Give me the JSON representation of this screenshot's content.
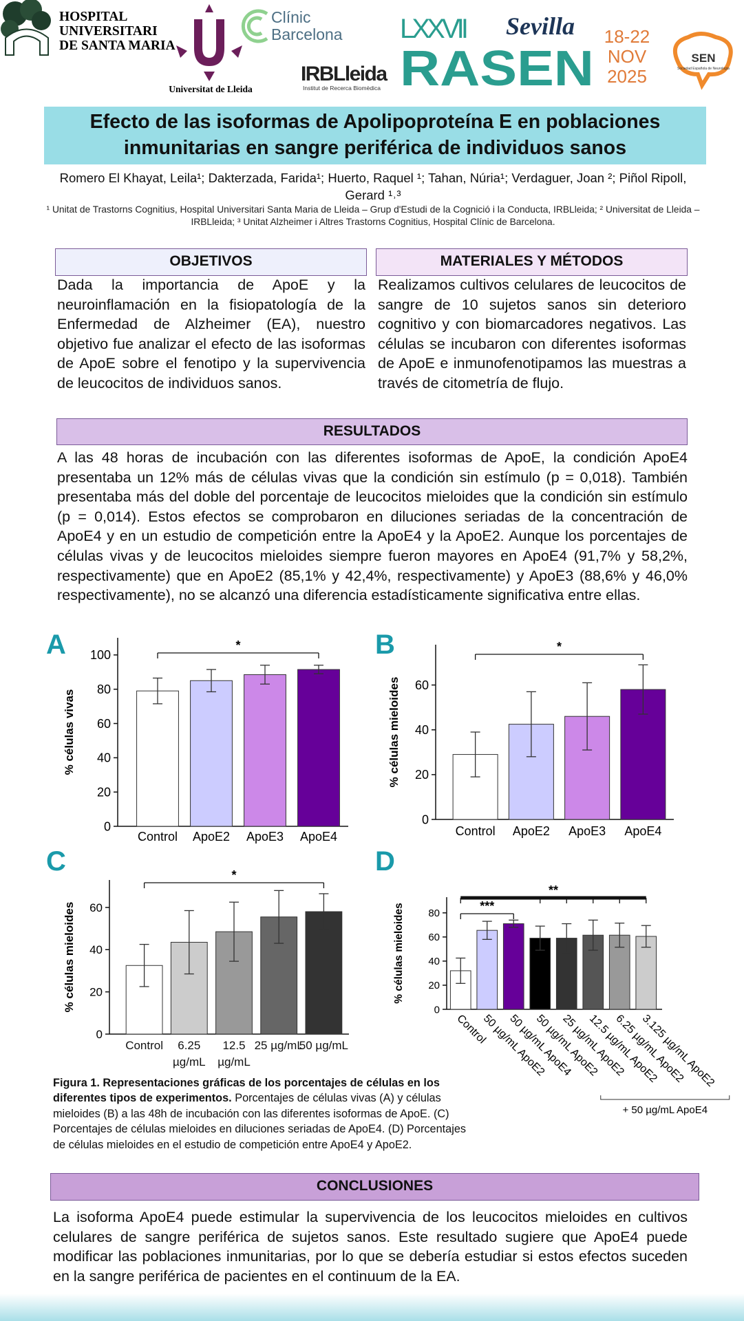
{
  "header": {
    "hospital": [
      "HOSPITAL",
      "UNIVERSITARI",
      "DE SANTA MARIA"
    ],
    "university": "Universitat de Lleida",
    "clinic": [
      "Clínic",
      "Barcelona"
    ],
    "irb": "IRBLleida",
    "irb_subtitle": "Institut de Recerca Biomèdica",
    "congress_edition": "LXXVII",
    "congress_city": "Sevilla",
    "congress_name": "RASEN",
    "congress_dates": [
      "18-22",
      "NOV",
      "2025"
    ],
    "society": "SEN",
    "society_subtitle": "Sociedad Española de Neurología"
  },
  "title": "Efecto de las isoformas de Apolipoproteína E en poblaciones inmunitarias en sangre periférica de individuos sanos",
  "authors": "Romero El Khayat, Leila¹; Dakterzada, Farida¹; Huerto, Raquel ¹; Tahan, Núria¹; Verdaguer, Joan ²; Piñol Ripoll, Gerard ¹˒³",
  "affiliations": "¹ Unitat de Trastorns Cognitius, Hospital Universitari Santa Maria de Lleida – Grup d'Estudi de la Cognició i la Conducta, IRBLleida; ² Universitat de Lleida – IRBLleida; ³ Unitat Alzheimer i Altres Trastorns Cognitius, Hospital Clínic de Barcelona.",
  "objectives": {
    "heading": "OBJETIVOS",
    "text": "Dada la importancia de ApoE y la neuroinflamación en la fisiopatología de la Enfermedad de Alzheimer (EA), nuestro objetivo fue analizar el efecto de las isoformas de ApoE sobre el fenotipo y la supervivencia de leucocitos de individuos sanos."
  },
  "methods": {
    "heading": "MATERIALES Y MÉTODOS",
    "text": "Realizamos cultivos celulares de leucocitos de sangre de 10 sujetos sanos sin deterioro cognitivo y con biomarcadores negativos. Las células se incubaron con diferentes isoformas de ApoE e inmunofenotipamos las muestras a través de citometría de flujo."
  },
  "results": {
    "heading": "RESULTADOS",
    "text": "A las 48 horas de incubación con las diferentes isoformas de ApoE, la condición ApoE4 presentaba un 12% más de células vivas que la condición sin estímulo (p = 0,018). También presentaba más del doble del porcentaje de leucocitos mieloides que la condición sin estímulo (p = 0,014). Estos efectos se comprobaron en diluciones seriadas de la concentración de ApoE4 y en un estudio de competición entre la ApoE4 y la ApoE2. Aunque los porcentajes de células vivas y de leucocitos mieloides siempre fueron mayores en ApoE4 (91,7% y 58,2%, respectivamente) que en ApoE2 (85,1% y 42,4%, respectivamente) y ApoE3 (88,6% y 46,0% respectivamente), no se alcanzó una diferencia estadísticamente significativa entre ellas."
  },
  "chart_data": [
    {
      "type": "bar",
      "panel": "A",
      "y_label": "% células vivas",
      "categories": [
        "Control",
        "ApoE2",
        "ApoE3",
        "ApoE4"
      ],
      "values": [
        79,
        85,
        88.5,
        91.5
      ],
      "errors": [
        7.5,
        6.5,
        5.5,
        2.5
      ],
      "colors": [
        "#ffffff",
        "#ccccff",
        "#cc88e8",
        "#660099"
      ],
      "ylim": [
        0,
        110
      ],
      "yticks": [
        0,
        20,
        40,
        60,
        80,
        100
      ],
      "brackets": [
        {
          "from": 0,
          "to": [
            3
          ],
          "label": "*"
        }
      ]
    },
    {
      "type": "bar",
      "panel": "B",
      "y_label": "% células mieloides",
      "categories": [
        "Control",
        "ApoE2",
        "ApoE3",
        "ApoE4"
      ],
      "values": [
        29,
        42.5,
        46,
        58
      ],
      "errors": [
        10,
        14.5,
        15,
        11
      ],
      "colors": [
        "#ffffff",
        "#ccccff",
        "#cc88e8",
        "#660099"
      ],
      "ylim": [
        0,
        78
      ],
      "yticks": [
        0,
        20,
        40,
        60
      ],
      "brackets": [
        {
          "from": 0,
          "to": [
            3
          ],
          "label": "*"
        }
      ]
    },
    {
      "type": "bar",
      "panel": "C",
      "y_label": "% células mieloides",
      "categories": [
        "Control",
        "6.25 µg/mL",
        "12.5 µg/mL",
        "25 µg/mL",
        "50 µg/mL"
      ],
      "values": [
        32.5,
        43.5,
        48.5,
        55.5,
        58
      ],
      "errors": [
        10,
        15,
        14,
        12.5,
        8.5
      ],
      "colors": [
        "#ffffff",
        "#cccccc",
        "#999999",
        "#666666",
        "#333333"
      ],
      "ylim": [
        0,
        73
      ],
      "yticks": [
        0,
        20,
        40,
        60
      ],
      "brackets": [
        {
          "from": 0,
          "to": [
            4
          ],
          "label": "*"
        }
      ]
    },
    {
      "type": "bar",
      "panel": "D",
      "y_label": "% células  mieloides",
      "categories": [
        "Control",
        "50 µg/mL ApoE2",
        "50 µg/mL ApoE4",
        "50 µg/mL ApoE2",
        "25 µg/mL ApoE2",
        "12.5 µg/mL ApoE2",
        "6.25 µg/mL ApoE2",
        "3.125 µg/mL ApoE2"
      ],
      "values": [
        32,
        65.5,
        71,
        59,
        59,
        61.5,
        61.5,
        60.5
      ],
      "errors": [
        10.5,
        7.5,
        3,
        10,
        12,
        12.5,
        10,
        9
      ],
      "colors": [
        "#ffffff",
        "#ccccff",
        "#660099",
        "#000000",
        "#333333",
        "#555555",
        "#999999",
        "#cccccc"
      ],
      "ylim": [
        0,
        93
      ],
      "yticks": [
        0,
        20,
        40,
        60,
        80
      ],
      "brackets": [
        {
          "from": 0,
          "to": [
            2
          ],
          "label": "***"
        },
        {
          "from": 0,
          "to": [
            3,
            4,
            5,
            6,
            7
          ],
          "label": "**",
          "line": "thick"
        }
      ],
      "group_label": {
        "text": "+ 50 µg/mL ApoE4",
        "from": 3,
        "to": 7
      }
    }
  ],
  "caption": {
    "title": "Figura 1.  Representaciones gráficas de los porcentajes de células en los diferentes tipos de experimentos.",
    "text": "Porcentajes de células vivas (A) y células mieloides (B) a las 48h de incubación con las diferentes isoformas de ApoE. (C) Porcentajes de células mieloides en diluciones seriadas de ApoE4. (D) Porcentajes de células mieloides en el estudio de competición entre ApoE4 y ApoE2."
  },
  "conclusions": {
    "heading": "CONCLUSIONES",
    "text": "La isoforma ApoE4 puede estimular la supervivencia de los leucocitos mieloides en cultivos celulares de sangre periférica de sujetos sanos. Este resultado sugiere que ApoE4 puede modificar las poblaciones inmunitarias, por lo que se debería estudiar si estos efectos suceden en la sangre periférica de pacientes en el continuum de la EA."
  }
}
